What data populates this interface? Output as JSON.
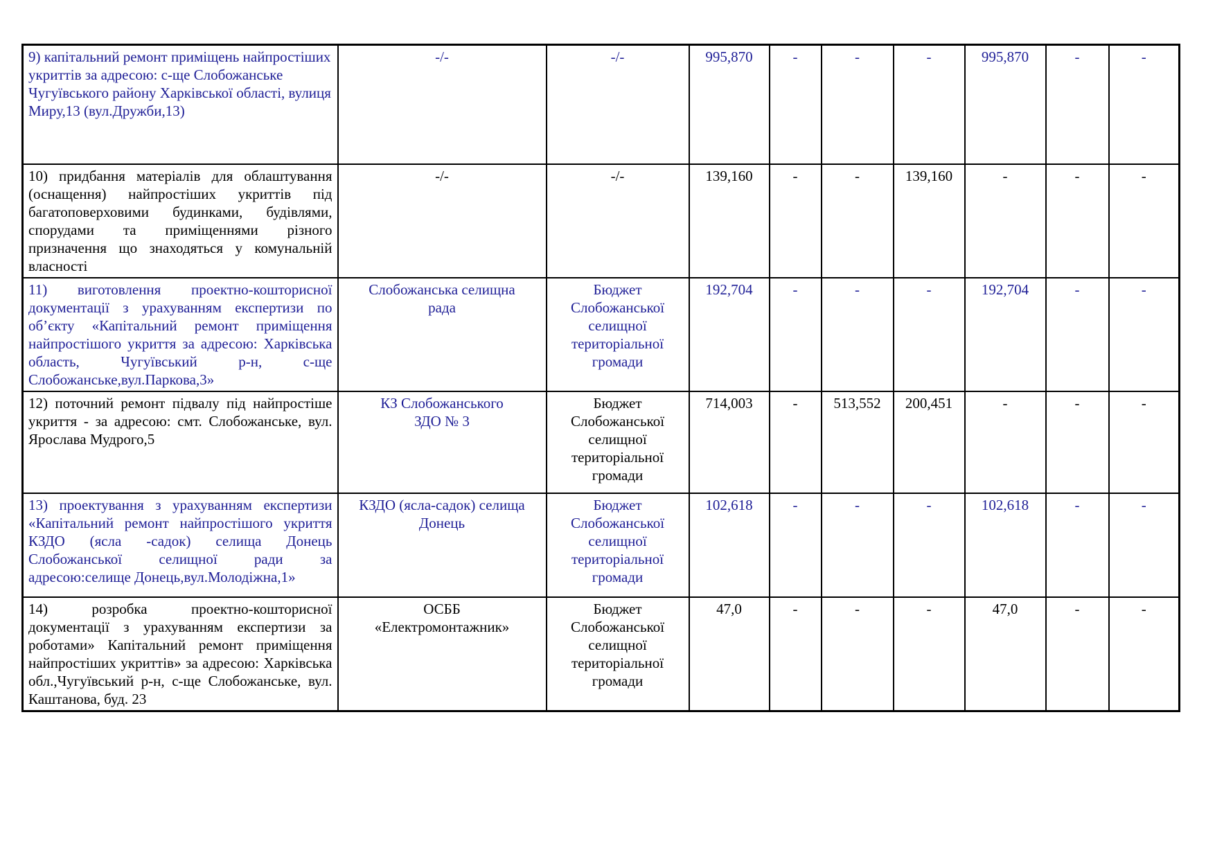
{
  "page": {
    "background": "#ffffff"
  },
  "table": {
    "palette": {
      "blue": "#1e1e96",
      "black": "#000000",
      "border": "#000000"
    },
    "rows": [
      {
        "desc": "9) капітальний ремонт приміщень найпростіших укриттів за адресою: с-ще Слобожанське Чугуївського району Харківської області, вулиця Миру,13 (вул.Дружби,13)",
        "org": "-/-",
        "budget": "-/-",
        "values": [
          "995,870",
          "-",
          "-",
          "-",
          "995,870",
          "-",
          "-"
        ],
        "desc_color": "blue",
        "org_color": "blue",
        "budget_color": "blue",
        "values_color": "blue",
        "desc_align": "left"
      },
      {
        "desc": "10) придбання матеріалів для облаштування (оснащення) найпростіших укриттів під багатоповерховими будинками, будівлями, спорудами та приміщеннями різного призначення що знаходяться у комунальній власності",
        "org": "-/-",
        "budget": "-/-",
        "values": [
          "139,160",
          "-",
          "-",
          "139,160",
          "-",
          "-",
          "-"
        ],
        "desc_color": "black",
        "org_color": "black",
        "budget_color": "black",
        "values_color": "black",
        "desc_align": "justify"
      },
      {
        "desc": "11) виготовлення проектно-кошторисної документації з урахуванням експертизи по об’єкту «Капітальний ремонт приміщення найпростішого укриття за адресою: Харківська область, Чугуївський р-н, с-ще Слобожанське,вул.Паркова,3»",
        "org": "Слобожанська селищна\nрада",
        "budget": "Бюджет\nСлобожанської\nселищної\nтериторіальної\nгромади",
        "values": [
          "192,704",
          "-",
          "-",
          "-",
          "192,704",
          "-",
          "-"
        ],
        "desc_color": "blue",
        "org_color": "blue",
        "budget_color": "blue",
        "values_color": "blue",
        "desc_align": "justify"
      },
      {
        "desc": "12) поточний ремонт підвалу під найпростіше укриття -  за адресою: смт. Слобожанське, вул. Ярослава Мудрого,5",
        "org": "КЗ Слобожанського\nЗДО № 3",
        "budget": "Бюджет\nСлобожанської\nселищної\nтериторіальної\nгромади",
        "values": [
          "714,003",
          "-",
          "513,552",
          "200,451",
          "-",
          "-",
          "-"
        ],
        "desc_color": "black",
        "org_color": "blue",
        "budget_color": "black",
        "values_color": "black",
        "desc_align": "justify"
      },
      {
        "desc": "13) проектування з урахуванням експертизи «Капітальний ремонт найпростішого укриття КЗДО (ясла -садок) селища Донець Слобожанської селищної ради за адресою:селище Донець,вул.Молодіжна,1»",
        "org": "КЗДО (ясла-садок) селища\nДонець",
        "budget": "Бюджет\nСлобожанської\nселищної\nтериторіальної\nгромади",
        "values": [
          "102,618",
          "-",
          "-",
          "-",
          "102,618",
          "-",
          "-"
        ],
        "desc_color": "blue",
        "org_color": "blue",
        "budget_color": "blue",
        "values_color": "blue",
        "desc_align": "justify"
      },
      {
        "desc": "14) розробка проектно-кошторисної документації з урахуванням експертизи за роботами» Капітальний ремонт приміщення найпростіших укриттів» за адресою: Харківська обл.,Чугуївський р-н, с-ще Слобожанське, вул. Каштанова, буд. 23",
        "org": "ОСББ\n«Електромонтажник»",
        "budget": "Бюджет\nСлобожанської\nселищної\nтериторіальної\nгромади",
        "values": [
          "47,0",
          "-",
          "-",
          "-",
          "47,0",
          "-",
          "-"
        ],
        "desc_color": "black",
        "org_color": "black",
        "budget_color": "black",
        "values_color": "black",
        "desc_align": "justify"
      }
    ]
  }
}
